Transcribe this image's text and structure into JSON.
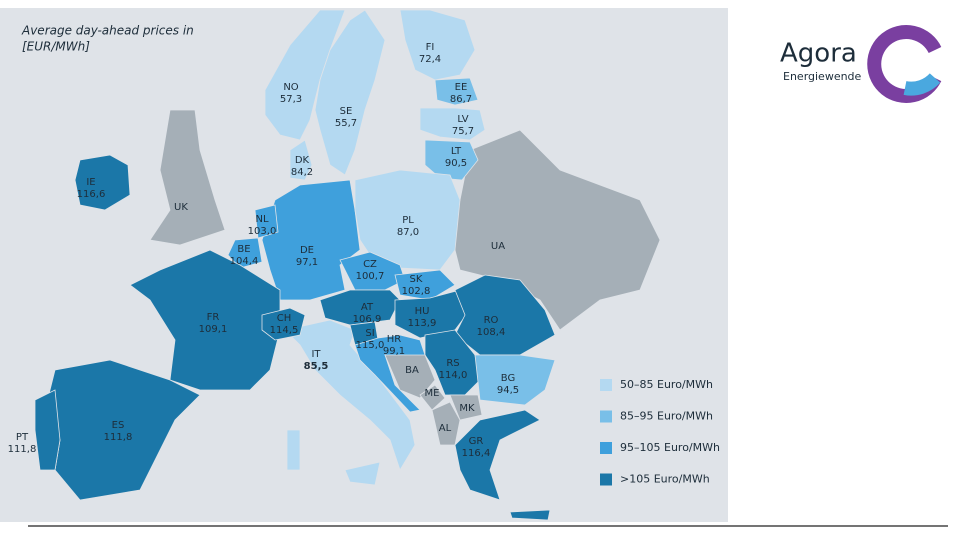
{
  "title": [
    "Average day-ahead prices in",
    "[EUR/MWh]"
  ],
  "logo": {
    "name": "Agora",
    "subtitle": "Energiewende"
  },
  "countries": [
    {
      "code": "NO",
      "price": "57,3"
    },
    {
      "code": "SE",
      "price": "55,7"
    },
    {
      "code": "FI",
      "price": "72,4"
    },
    {
      "code": "EE",
      "price": "86,7"
    },
    {
      "code": "LV",
      "price": "75,7"
    },
    {
      "code": "LT",
      "price": "90,5"
    },
    {
      "code": "DK",
      "price": "84,2"
    },
    {
      "code": "IE",
      "price": "116,6"
    },
    {
      "code": "UK"
    },
    {
      "code": "NL",
      "price": "103,0"
    },
    {
      "code": "BE",
      "price": "104,4"
    },
    {
      "code": "PL",
      "price": "87,0"
    },
    {
      "code": "DE",
      "price": "97,1"
    },
    {
      "code": "CZ",
      "price": "100,7"
    },
    {
      "code": "UA"
    },
    {
      "code": "SK",
      "price": "102,8"
    },
    {
      "code": "AT",
      "price": "106,9"
    },
    {
      "code": "HU",
      "price": "113,9"
    },
    {
      "code": "RO",
      "price": "108,4"
    },
    {
      "code": "FR",
      "price": "109,1"
    },
    {
      "code": "CH",
      "price": "114,5"
    },
    {
      "code": "SI",
      "price": "115,0"
    },
    {
      "code": "HR",
      "price": "99,1"
    },
    {
      "code": "IT",
      "price": "85,5"
    },
    {
      "code": "BA"
    },
    {
      "code": "RS",
      "price": "114,0"
    },
    {
      "code": "BG",
      "price": "94,5"
    },
    {
      "code": "ME"
    },
    {
      "code": "MK"
    },
    {
      "code": "AL"
    },
    {
      "code": "PT",
      "price": "111,8"
    },
    {
      "code": "ES",
      "price": "111,8"
    },
    {
      "code": "GR",
      "price": "116,4"
    }
  ],
  "legend": [
    {
      "label": "50–85 Euro/MWh",
      "color": "#b4d9f1"
    },
    {
      "label": "85–95 Euro/MWh",
      "color": "#79bfe8"
    },
    {
      "label": "95–105 Euro/MWh",
      "color": "#3fa0dc"
    },
    {
      "label": ">105 Euro/MWh",
      "color": "#1b77a8"
    }
  ]
}
